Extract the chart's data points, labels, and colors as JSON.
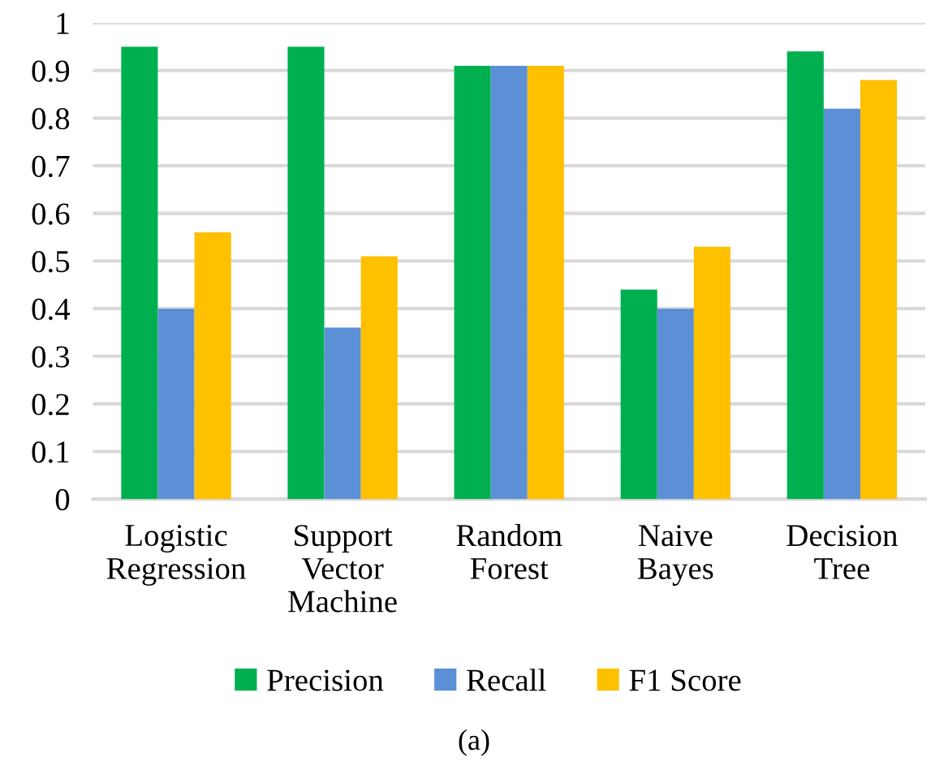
{
  "chart_data": {
    "type": "bar",
    "categories": [
      "Logistic\nRegression",
      "Support\nVector\nMachine",
      "Random\nForest",
      "Naive\nBayes",
      "Decision\nTree"
    ],
    "series": [
      {
        "name": "Precision",
        "color": "#00b050",
        "values": [
          0.95,
          0.95,
          0.91,
          0.44,
          0.94
        ]
      },
      {
        "name": "Recall",
        "color": "#5b8fd6",
        "values": [
          0.4,
          0.36,
          0.91,
          0.4,
          0.82
        ]
      },
      {
        "name": "F1 Score",
        "color": "#ffc000",
        "values": [
          0.56,
          0.51,
          0.91,
          0.53,
          0.88
        ]
      }
    ],
    "ylim": [
      0,
      1
    ],
    "yticks": [
      0,
      0.1,
      0.2,
      0.3,
      0.4,
      0.5,
      0.6,
      0.7,
      0.8,
      0.9,
      1
    ],
    "grid": "y",
    "legend": "bottom",
    "annotations": [
      "(a)"
    ]
  }
}
